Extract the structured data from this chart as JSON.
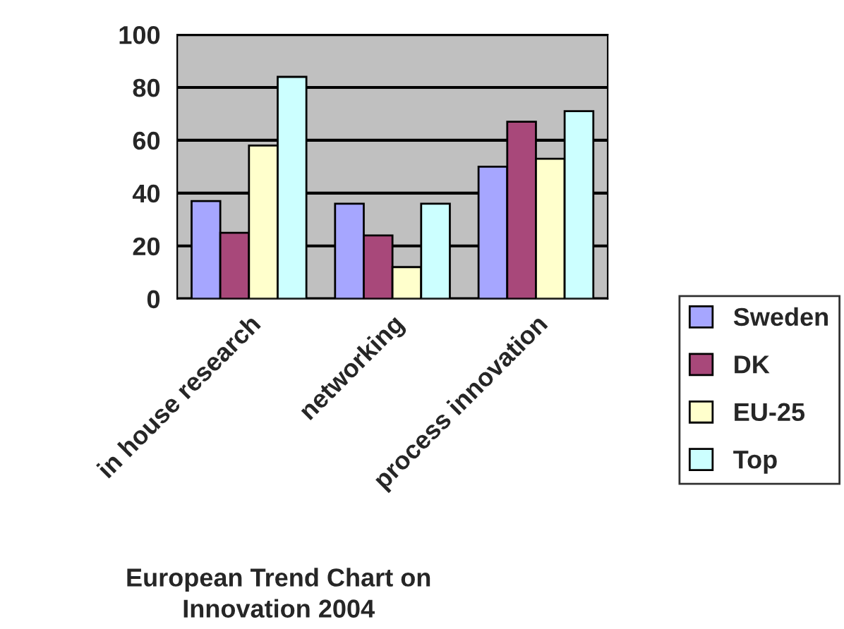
{
  "chart_data": {
    "type": "bar",
    "xlabel": "European Trend Chart on\nInnovation 2004",
    "categories": [
      "in house research",
      "networking",
      "process innovation"
    ],
    "series": [
      {
        "name": "Sweden",
        "color": "#a6a6ff",
        "values": [
          37,
          36,
          50
        ]
      },
      {
        "name": "DK",
        "color": "#a8487a",
        "values": [
          25,
          24,
          67
        ]
      },
      {
        "name": "EU-25",
        "color": "#ffffcc",
        "values": [
          58,
          12,
          53
        ]
      },
      {
        "name": "Top",
        "color": "#ccffff",
        "values": [
          84,
          36,
          71
        ]
      }
    ],
    "ylim": [
      0,
      100
    ],
    "yticks": [
      0,
      20,
      40,
      60,
      80,
      100
    ],
    "grid": "y",
    "legend": "right"
  }
}
